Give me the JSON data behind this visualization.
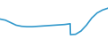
{
  "x": [
    0,
    1,
    2,
    3,
    4,
    5,
    6,
    7,
    8,
    9,
    10,
    11,
    12,
    13,
    13.05,
    14,
    15,
    16,
    17,
    18,
    19,
    20
  ],
  "y": [
    5.5,
    5.2,
    4.5,
    3.8,
    3.5,
    3.4,
    3.4,
    3.5,
    3.6,
    3.7,
    3.8,
    3.9,
    4.0,
    4.2,
    1.2,
    1.3,
    2.2,
    3.8,
    5.8,
    7.2,
    8.0,
    8.5
  ],
  "line_color": "#3399cc",
  "linewidth": 1.2,
  "background_color": "#ffffff",
  "ylim": [
    0,
    11
  ],
  "xlim": [
    0,
    20
  ]
}
